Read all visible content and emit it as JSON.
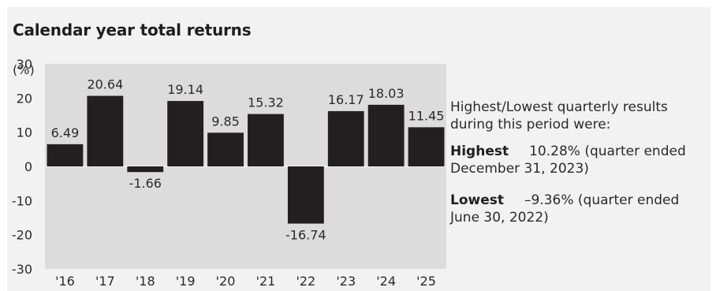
{
  "chart_data": {
    "type": "bar",
    "title": "Calendar year total returns",
    "ylabel": "(%)",
    "categories": [
      "'16",
      "'17",
      "'18",
      "'19",
      "'20",
      "'21",
      "'22",
      "'23",
      "'24",
      "'25"
    ],
    "values": [
      6.49,
      20.64,
      -1.66,
      19.14,
      9.85,
      15.32,
      -16.74,
      16.17,
      18.03,
      11.45
    ],
    "value_labels": [
      "6.49",
      "20.64",
      "-1.66",
      "19.14",
      "9.85",
      "15.32",
      "-16.74",
      "16.17",
      "18.03",
      "11.45"
    ],
    "ylim": [
      -30,
      30
    ],
    "yticks": [
      30,
      20,
      10,
      0,
      -10,
      -20,
      -30
    ],
    "grid": false,
    "bar_color": "#231f20",
    "plot_bg": "#dcdcdc"
  },
  "summary": {
    "intro": "Highest/Lowest quarterly results during this period were:",
    "highest_label": "Highest",
    "highest_value": "10.28% (quarter ended December 31, 2023)",
    "lowest_label": "Lowest",
    "lowest_value": "–9.36% (quarter ended June 30, 2022)"
  }
}
